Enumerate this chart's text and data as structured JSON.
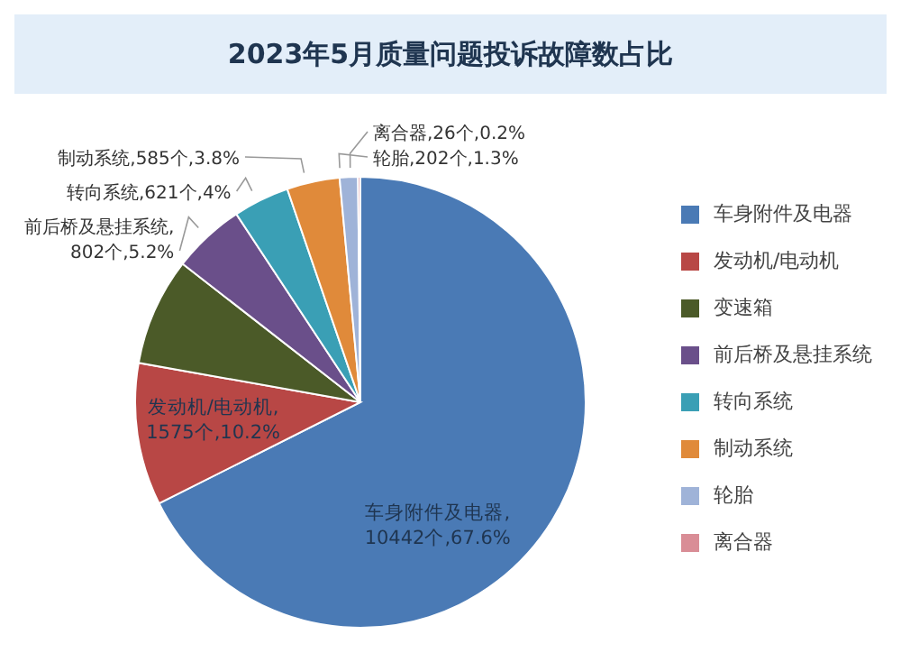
{
  "chart_data": {
    "type": "pie",
    "title": "2023年5月质量问题投诉故障数占比",
    "categories": [
      "车身附件及电器",
      "发动机/电动机",
      "变速箱",
      "前后桥及悬挂系统",
      "转向系统",
      "制动系统",
      "轮胎",
      "离合器"
    ],
    "values": [
      10442,
      1575,
      1194,
      802,
      621,
      585,
      202,
      26
    ],
    "value_labels": [
      "车身附件及电器,10442个,67.6%",
      "发动机/电动机,1575个,10.2%",
      null,
      "前后桥及悬挂系统,802个,5.2%",
      "转向系统,621个,4%",
      "制动系统,585个,3.8%",
      "轮胎,202个,1.3%",
      "离合器,26个,0.2%"
    ],
    "colors": [
      "#4a7ab5",
      "#b84745",
      "#4b5a28",
      "#6a4f8a",
      "#3a9fb5",
      "#e08a3a",
      "#9fb3d8",
      "#d98d96"
    ],
    "legend": "right"
  }
}
